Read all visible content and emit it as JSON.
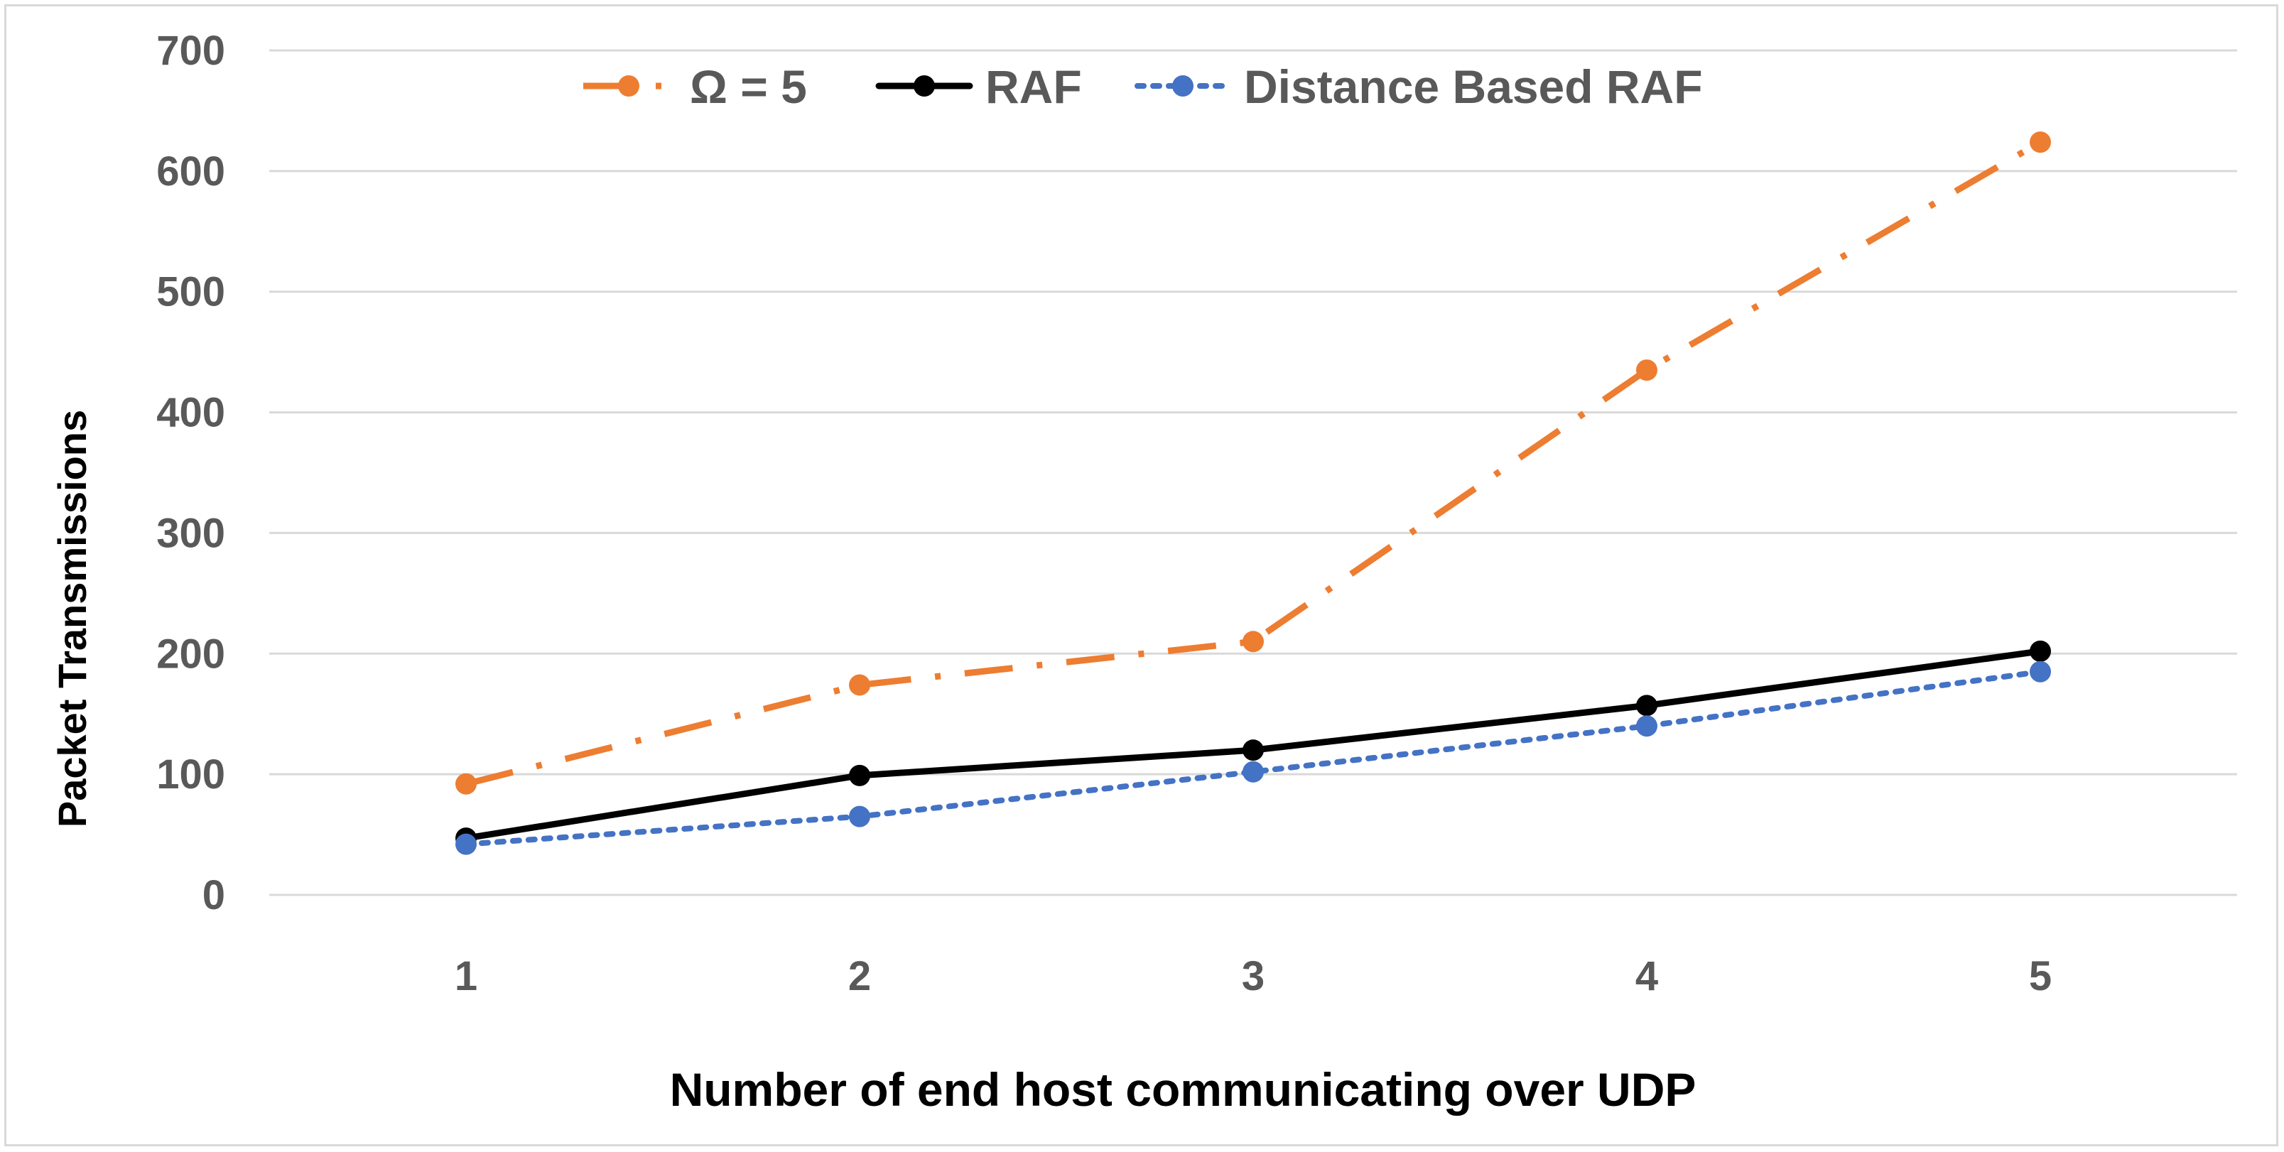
{
  "chart_data": {
    "type": "line",
    "title": "",
    "xlabel": "Number of end host communicating over UDP",
    "ylabel": "Packet Transmissions",
    "categories": [
      "1",
      "2",
      "3",
      "4",
      "5"
    ],
    "ylim": [
      0,
      700
    ],
    "yticks": [
      0,
      100,
      200,
      300,
      400,
      500,
      600,
      700
    ],
    "grid": true,
    "legend_position": "top",
    "series": [
      {
        "name": "Ω = 5",
        "values": [
          92,
          174,
          210,
          435,
          624
        ],
        "color": "#ed7d31",
        "dash": "dash-dot"
      },
      {
        "name": "RAF",
        "values": [
          47,
          99,
          120,
          157,
          202
        ],
        "color": "#000000",
        "dash": "solid"
      },
      {
        "name": "Distance Based RAF",
        "values": [
          42,
          65,
          102,
          140,
          185
        ],
        "color": "#4472c4",
        "dash": "dotted"
      }
    ]
  }
}
